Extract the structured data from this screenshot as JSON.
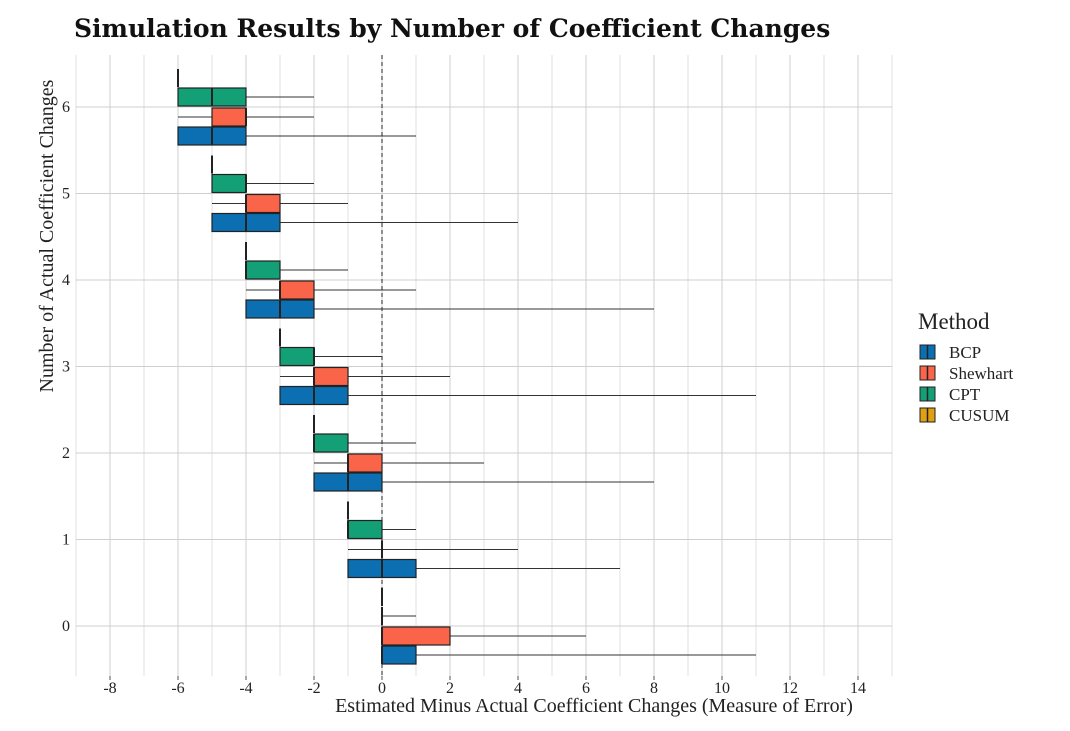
{
  "chart_data": {
    "type": "boxplot",
    "orientation": "horizontal",
    "title": "Simulation Results by Number of Coefficient Changes",
    "xlabel": "Estimated Minus Actual Coefficient Changes (Measure of Error)",
    "ylabel": "Number of Actual Coefficient Changes",
    "xlim": [
      -9,
      15
    ],
    "x_ticks": [
      -8,
      -6,
      -4,
      -2,
      0,
      2,
      4,
      6,
      8,
      10,
      12,
      14
    ],
    "y_categories": [
      0,
      1,
      2,
      3,
      4,
      5,
      6
    ],
    "reference_line_x": 0,
    "grid": true,
    "legend": {
      "title": "Method",
      "position": "right",
      "entries": [
        "BCP",
        "Shewhart",
        "CPT",
        "CUSUM"
      ]
    },
    "colors": {
      "BCP": "#0b6fb1",
      "Shewhart": "#fa6449",
      "CPT": "#13a077",
      "CUSUM": "#dfa013"
    },
    "series": [
      {
        "name": "BCP",
        "boxes": [
          {
            "category": 0,
            "whisker_low": 0,
            "q1": 0,
            "median": 0,
            "q3": 1,
            "whisker_high": 11
          },
          {
            "category": 1,
            "whisker_low": -1,
            "q1": -1,
            "median": 0,
            "q3": 1,
            "whisker_high": 7
          },
          {
            "category": 2,
            "whisker_low": -2,
            "q1": -2,
            "median": -1,
            "q3": 0,
            "whisker_high": 8
          },
          {
            "category": 3,
            "whisker_low": -3,
            "q1": -3,
            "median": -2,
            "q3": -1,
            "whisker_high": 11
          },
          {
            "category": 4,
            "whisker_low": -4,
            "q1": -4,
            "median": -3,
            "q3": -2,
            "whisker_high": 8
          },
          {
            "category": 5,
            "whisker_low": -5,
            "q1": -5,
            "median": -4,
            "q3": -3,
            "whisker_high": 4
          },
          {
            "category": 6,
            "whisker_low": -6,
            "q1": -6,
            "median": -5,
            "q3": -4,
            "whisker_high": 1
          }
        ]
      },
      {
        "name": "Shewhart",
        "boxes": [
          {
            "category": 0,
            "whisker_low": 0,
            "q1": 0,
            "median": 0,
            "q3": 2,
            "whisker_high": 6
          },
          {
            "category": 1,
            "whisker_low": -1,
            "q1": 0,
            "median": 0,
            "q3": 0,
            "whisker_high": 4
          },
          {
            "category": 2,
            "whisker_low": -2,
            "q1": -1,
            "median": -1,
            "q3": 0,
            "whisker_high": 3
          },
          {
            "category": 3,
            "whisker_low": -3,
            "q1": -2,
            "median": -2,
            "q3": -1,
            "whisker_high": 2
          },
          {
            "category": 4,
            "whisker_low": -4,
            "q1": -3,
            "median": -3,
            "q3": -2,
            "whisker_high": 1
          },
          {
            "category": 5,
            "whisker_low": -5,
            "q1": -4,
            "median": -4,
            "q3": -3,
            "whisker_high": -1
          },
          {
            "category": 6,
            "whisker_low": -6,
            "q1": -5,
            "median": -4,
            "q3": -4,
            "whisker_high": -2
          }
        ]
      },
      {
        "name": "CPT",
        "boxes": [
          {
            "category": 0,
            "whisker_low": 0,
            "q1": 0,
            "median": 0,
            "q3": 0,
            "whisker_high": 1
          },
          {
            "category": 1,
            "whisker_low": -1,
            "q1": -1,
            "median": -1,
            "q3": 0,
            "whisker_high": 1
          },
          {
            "category": 2,
            "whisker_low": -2,
            "q1": -2,
            "median": -2,
            "q3": -1,
            "whisker_high": 1
          },
          {
            "category": 3,
            "whisker_low": -3,
            "q1": -3,
            "median": -2,
            "q3": -2,
            "whisker_high": 0
          },
          {
            "category": 4,
            "whisker_low": -4,
            "q1": -4,
            "median": -4,
            "q3": -3,
            "whisker_high": -1
          },
          {
            "category": 5,
            "whisker_low": -5,
            "q1": -5,
            "median": -4,
            "q3": -4,
            "whisker_high": -2
          },
          {
            "category": 6,
            "whisker_low": -6,
            "q1": -6,
            "median": -5,
            "q3": -4,
            "whisker_high": -2
          }
        ]
      },
      {
        "name": "CUSUM",
        "boxes": [
          {
            "category": 0,
            "whisker_low": 0,
            "q1": 0,
            "median": 0,
            "q3": 0,
            "whisker_high": 0
          },
          {
            "category": 1,
            "whisker_low": -1,
            "q1": -1,
            "median": -1,
            "q3": -1,
            "whisker_high": -1
          },
          {
            "category": 2,
            "whisker_low": -2,
            "q1": -2,
            "median": -2,
            "q3": -2,
            "whisker_high": -2
          },
          {
            "category": 3,
            "whisker_low": -3,
            "q1": -3,
            "median": -3,
            "q3": -3,
            "whisker_high": -3
          },
          {
            "category": 4,
            "whisker_low": -4,
            "q1": -4,
            "median": -4,
            "q3": -4,
            "whisker_high": -4
          },
          {
            "category": 5,
            "whisker_low": -5,
            "q1": -5,
            "median": -5,
            "q3": -5,
            "whisker_high": -5
          },
          {
            "category": 6,
            "whisker_low": -6,
            "q1": -6,
            "median": -6,
            "q3": -6,
            "whisker_high": -6
          }
        ]
      }
    ]
  }
}
